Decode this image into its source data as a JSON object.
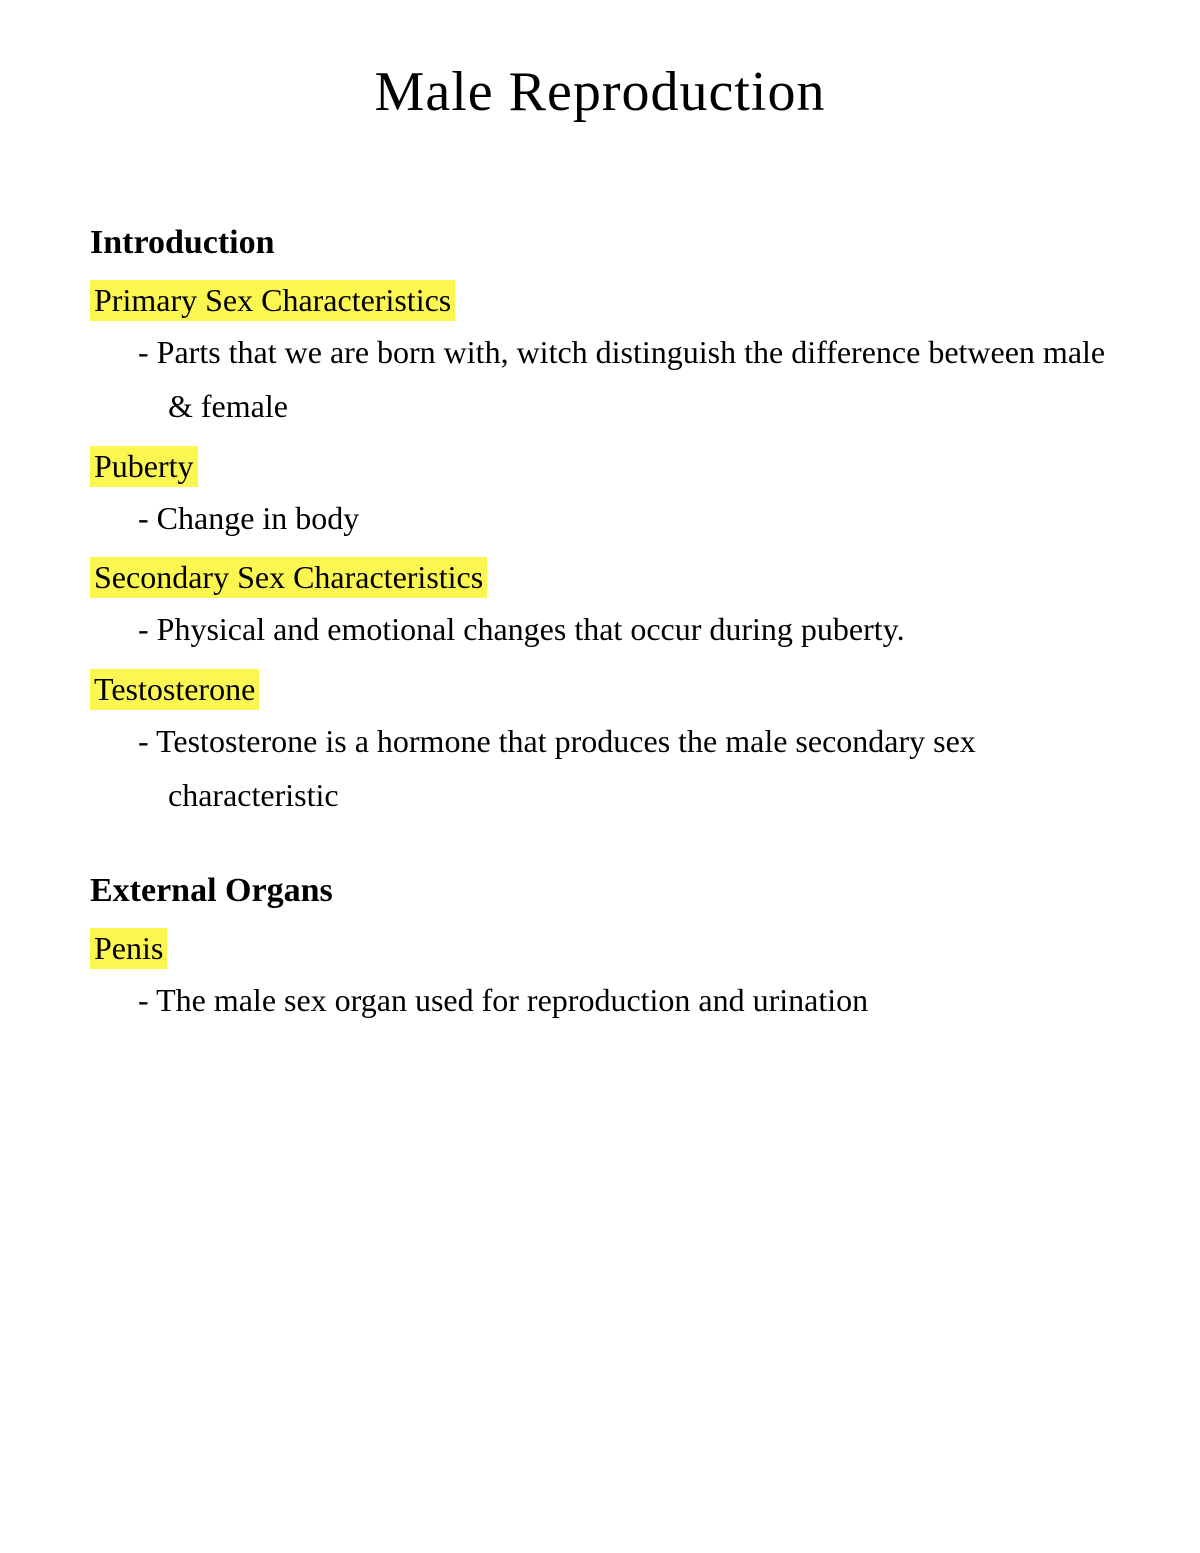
{
  "title": "Male Reproduction",
  "sections": [
    {
      "heading": "Introduction",
      "terms": [
        {
          "label": "Primary Sex Characteristics",
          "definition": "Parts that we are born with, witch distinguish the difference between male & female"
        },
        {
          "label": "Puberty",
          "definition": "Change in body"
        },
        {
          "label": " Secondary Sex Characteristics",
          "definition": "Physical and emotional changes that occur during puberty."
        },
        {
          "label": "Testosterone ",
          "definition": "Testosterone is a hormone that produces the male secondary sex characteristic"
        }
      ]
    },
    {
      "heading": "External Organs",
      "terms": [
        {
          "label": "Penis",
          "definition": "The male sex organ used for reproduction and urination"
        }
      ]
    }
  ],
  "styles": {
    "highlight_color": "#fcf750",
    "background_color": "#ffffff",
    "text_color": "#000000",
    "title_fontsize": 56,
    "heading_fontsize": 34,
    "body_fontsize": 32
  }
}
